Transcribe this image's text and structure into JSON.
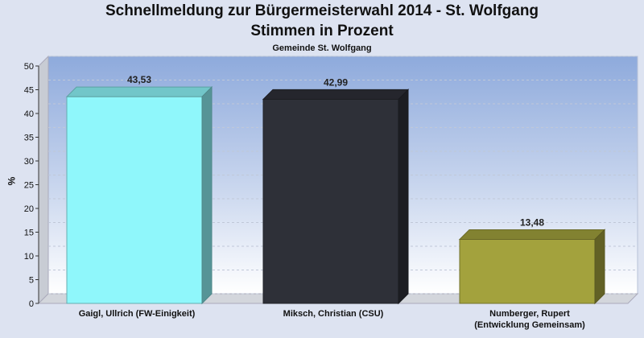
{
  "chart_data": {
    "type": "bar",
    "title": "Schnellmeldung zur Bürgermeisterwahl 2014 - St. Wolfgang",
    "subtitle": "Stimmen in Prozent",
    "caption": "Gemeinde St. Wolfgang",
    "ylabel": "%",
    "xlabel": "",
    "ylim": [
      0,
      50
    ],
    "yticks": [
      "0",
      "5",
      "10",
      "15",
      "20",
      "25",
      "30",
      "35",
      "40",
      "45",
      "50"
    ],
    "categories": [
      {
        "line1": "Gaigl, Ullrich (FW-Einigkeit)",
        "line2": ""
      },
      {
        "line1": "Miksch, Christian (CSU)",
        "line2": ""
      },
      {
        "line1": "Numberger, Rupert",
        "line2": "(Entwicklung Gemeinsam)"
      }
    ],
    "values": [
      43.53,
      42.99,
      13.48
    ],
    "value_labels": [
      "43,53",
      "42,99",
      "13,48"
    ],
    "colors": [
      "#8ff7fb",
      "#2e3038",
      "#a3a23d"
    ],
    "grid": true
  }
}
